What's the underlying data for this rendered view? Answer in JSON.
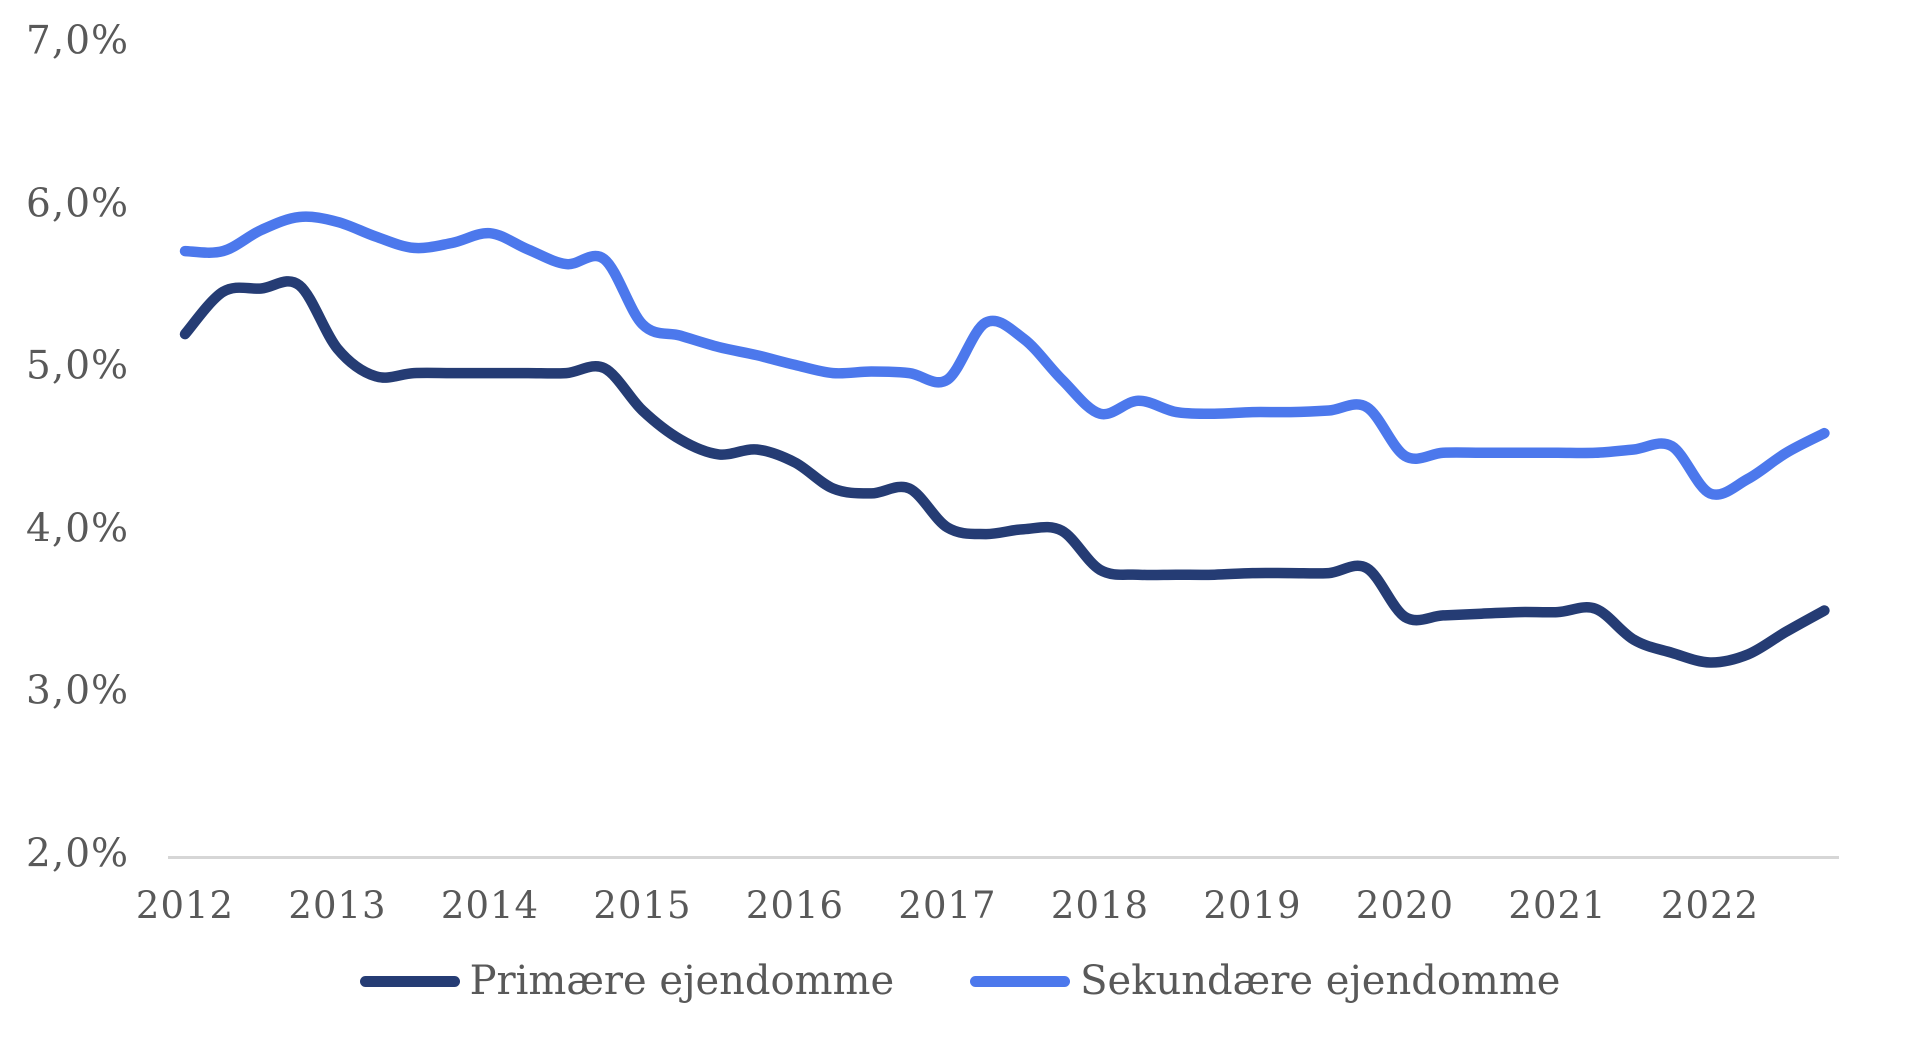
{
  "chart_data": {
    "type": "line",
    "title": "",
    "x_categories": [
      "2012",
      "2013",
      "2014",
      "2015",
      "2016",
      "2017",
      "2018",
      "2019",
      "2020",
      "2021",
      "2022"
    ],
    "x_frequency": "quarterly",
    "y_axis": {
      "ticks": [
        {
          "value": 7.0,
          "label": "7,0%"
        },
        {
          "value": 6.0,
          "label": "6,0%"
        },
        {
          "value": 5.0,
          "label": "5,0%"
        },
        {
          "value": 4.0,
          "label": "4,0%"
        },
        {
          "value": 3.0,
          "label": "3,0%"
        },
        {
          "value": 2.0,
          "label": "2,0%"
        }
      ],
      "min": 2.0,
      "max": 7.0,
      "unit": "percent",
      "number_format": "danish-comma-decimal"
    },
    "grid": "off",
    "legend_position": "bottom",
    "series": [
      {
        "name": "Primære ejendomme",
        "color": "#253c74",
        "values": [
          5.21,
          5.47,
          5.49,
          5.51,
          5.12,
          4.95,
          4.97,
          4.97,
          4.97,
          4.97,
          4.97,
          5.0,
          4.74,
          4.56,
          4.47,
          4.5,
          4.42,
          4.26,
          4.23,
          4.26,
          4.02,
          3.98,
          4.01,
          4.0,
          3.76,
          3.73,
          3.73,
          3.73,
          3.74,
          3.74,
          3.74,
          3.77,
          3.47,
          3.48,
          3.49,
          3.5,
          3.5,
          3.52,
          3.33,
          3.25,
          3.19,
          3.24,
          3.38,
          3.51
        ]
      },
      {
        "name": "Sekundære ejendomme",
        "color": "#4c78ec",
        "values": [
          5.72,
          5.72,
          5.85,
          5.93,
          5.9,
          5.81,
          5.74,
          5.77,
          5.83,
          5.73,
          5.64,
          5.67,
          5.27,
          5.2,
          5.13,
          5.08,
          5.02,
          4.97,
          4.98,
          4.97,
          4.93,
          5.28,
          5.18,
          4.93,
          4.72,
          4.8,
          4.73,
          4.72,
          4.73,
          4.73,
          4.74,
          4.76,
          4.46,
          4.48,
          4.48,
          4.48,
          4.48,
          4.48,
          4.5,
          4.52,
          4.23,
          4.32,
          4.48,
          4.6
        ]
      }
    ],
    "axis_color": "#d6d6d6",
    "label_color": "#595959",
    "background_color": "#ffffff"
  }
}
